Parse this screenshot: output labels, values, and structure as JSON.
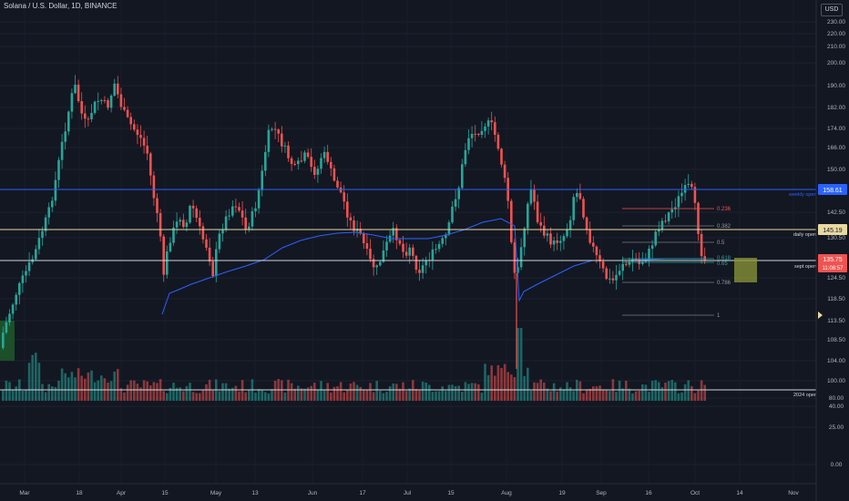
{
  "header": {
    "title": "Solana / U.S. Dollar, 1D, BINANCE",
    "currency_button": "USD"
  },
  "chart_data": {
    "type": "candlestick",
    "price_axis_ticks": [
      "230.00",
      "220.00",
      "210.00",
      "200.00",
      "190.00",
      "182.00",
      "174.00",
      "166.00",
      "150.00",
      "142.50",
      "130.50",
      "124.50",
      "118.50",
      "113.50",
      "108.50",
      "104.00",
      "100.00",
      "80.00",
      "40.00",
      "25.00",
      "0.00"
    ],
    "time_axis_ticks": [
      "Mar",
      "18",
      "Apr",
      "15",
      "May",
      "13",
      "Jun",
      "17",
      "Jul",
      "15",
      "Aug",
      "19",
      "Sep",
      "16",
      "Oct",
      "14",
      "Nov"
    ],
    "horizontal_levels": [
      {
        "label": "weekly open",
        "badge": "158.61",
        "color": "#2962ff"
      },
      {
        "label": "daily open",
        "badge": "145.19",
        "color": "#e8d9a0"
      },
      {
        "label": "sept open",
        "badge": "135.75",
        "badge_sub": "11:08:57",
        "color": "#d1d4dc"
      },
      {
        "label": "2024 open",
        "badge": "",
        "color": "#d1d4dc"
      }
    ],
    "fib_levels": [
      "0.236",
      "0.382",
      "0.5",
      "0.618",
      "0.65",
      "0.786",
      "1"
    ],
    "moving_average_color": "#2962ff",
    "up_color": "#26a69a",
    "down_color": "#ef5350"
  }
}
